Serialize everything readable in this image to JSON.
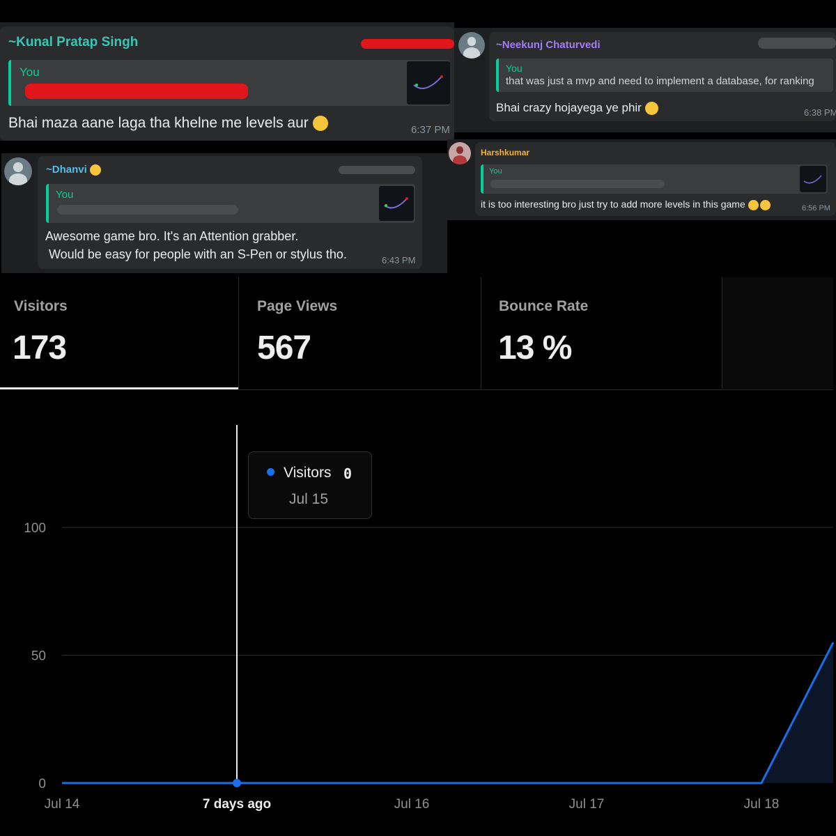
{
  "chat": {
    "msg1": {
      "sender": "~Kunal Pratap Singh",
      "quote_author": "You",
      "text": "Bhai maza aane laga tha khelne me levels aur",
      "time": "6:37 PM"
    },
    "msg2": {
      "sender": "~Neekunj Chaturvedi",
      "quote_author": "You",
      "quote_text": "that was just a mvp and need to implement a database, for ranking",
      "text": "Bhai crazy hojayega ye phir",
      "time": "6:38 PM"
    },
    "msg3": {
      "sender": "~Dhanvi",
      "quote_author": "You",
      "text_line1": "Awesome game bro. It's an Attention grabber.",
      "text_line2": "Would be easy for people with an  S-Pen or stylus tho.",
      "time": "6:43 PM"
    },
    "msg4": {
      "sender": "Harshkumar",
      "quote_author": "You",
      "text": "it is too interesting bro just try to add more levels in this game",
      "time": "6:56 PM"
    }
  },
  "stats": [
    {
      "label": "Visitors",
      "value": "173"
    },
    {
      "label": "Page Views",
      "value": "567"
    },
    {
      "label": "Bounce Rate",
      "value": "13 %"
    }
  ],
  "tooltip": {
    "series_name": "Visitors",
    "value": "0",
    "date": "Jul 15"
  },
  "colors": {
    "accent_blue": "#1a6fe8",
    "whatsapp_green": "#06cf9c"
  },
  "chart_data": {
    "type": "area",
    "x": [
      "Jul 14",
      "Jul 15",
      "Jul 16",
      "Jul 17",
      "Jul 18",
      "Jul 18+"
    ],
    "series": [
      {
        "name": "Visitors",
        "values": [
          0,
          0,
          0,
          0,
          0,
          55
        ]
      }
    ],
    "tick_labels_x": [
      "Jul 14",
      "7 days ago",
      "Jul 16",
      "Jul 17",
      "Jul 18"
    ],
    "highlighted_tick": "7 days ago",
    "yticks": [
      0,
      50,
      100
    ],
    "ylim": [
      0,
      145
    ],
    "grid": true,
    "hover_index": 1
  }
}
